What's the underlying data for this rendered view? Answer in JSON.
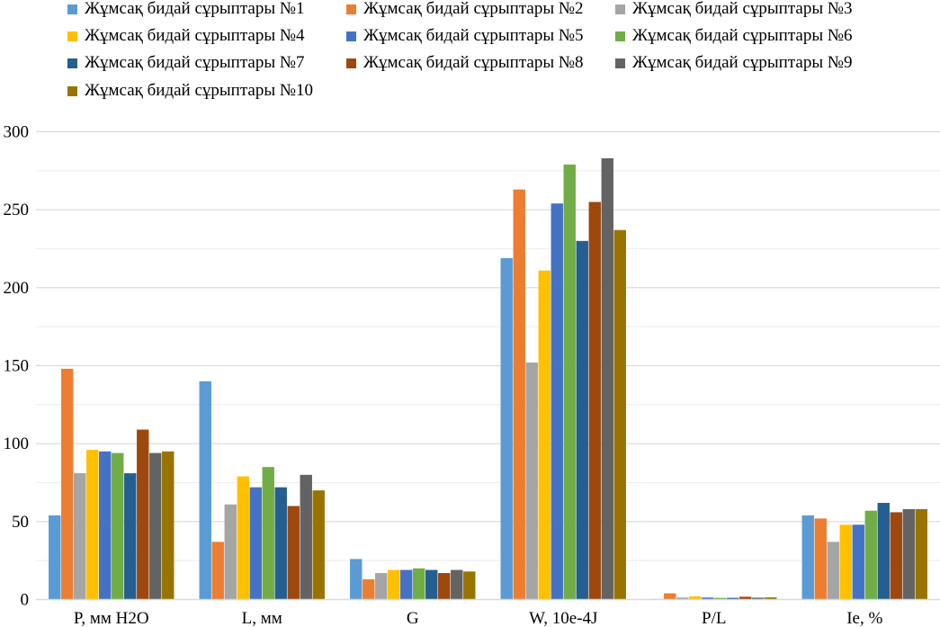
{
  "chart_data": {
    "type": "bar",
    "categories": [
      "P, мм H2O",
      "L, мм",
      "G",
      "W, 10e-4J",
      "P/L",
      "Ie, %"
    ],
    "ylim": [
      0,
      300
    ],
    "yticks": [
      "0",
      "50",
      "100",
      "150",
      "200",
      "250",
      "300"
    ],
    "grid": true,
    "legend_position": "top",
    "series": [
      {
        "name": "Жұмсақ бидай сұрыптары №1",
        "color": "#5b9bd5",
        "values": [
          54,
          140,
          26,
          219,
          0.4,
          54
        ]
      },
      {
        "name": "Жұмсақ бидай сұрыптары №2",
        "color": "#ed7d31",
        "values": [
          148,
          37,
          13,
          263,
          4,
          52
        ]
      },
      {
        "name": "Жұмсақ бидай сұрыптары №3",
        "color": "#a5a5a5",
        "values": [
          81,
          61,
          17,
          152,
          1.3,
          37
        ]
      },
      {
        "name": "Жұмсақ бидай сұрыптары №4",
        "color": "#ffc000",
        "values": [
          96,
          79,
          19,
          211,
          2,
          48
        ]
      },
      {
        "name": "Жұмсақ бидай сұрыптары №5",
        "color": "#4472c4",
        "values": [
          95,
          72,
          19,
          254,
          1.3,
          48
        ]
      },
      {
        "name": "Жұмсақ бидай сұрыптары №6",
        "color": "#70ad47",
        "values": [
          94,
          85,
          20,
          279,
          1.1,
          57
        ]
      },
      {
        "name": "Жұмсақ бидай сұрыптары №7",
        "color": "#255e91",
        "values": [
          81,
          72,
          19,
          230,
          1.1,
          62
        ]
      },
      {
        "name": "Жұмсақ бидай сұрыптары №8",
        "color": "#9e480e",
        "values": [
          109,
          60,
          17,
          255,
          1.8,
          56
        ]
      },
      {
        "name": "Жұмсақ бидай сұрыптары №9",
        "color": "#636363",
        "values": [
          94,
          80,
          19,
          283,
          1.2,
          58
        ]
      },
      {
        "name": "Жұмсақ бидай сұрыптары №10",
        "color": "#997300",
        "values": [
          95,
          70,
          18,
          237,
          1.4,
          58
        ]
      }
    ]
  }
}
